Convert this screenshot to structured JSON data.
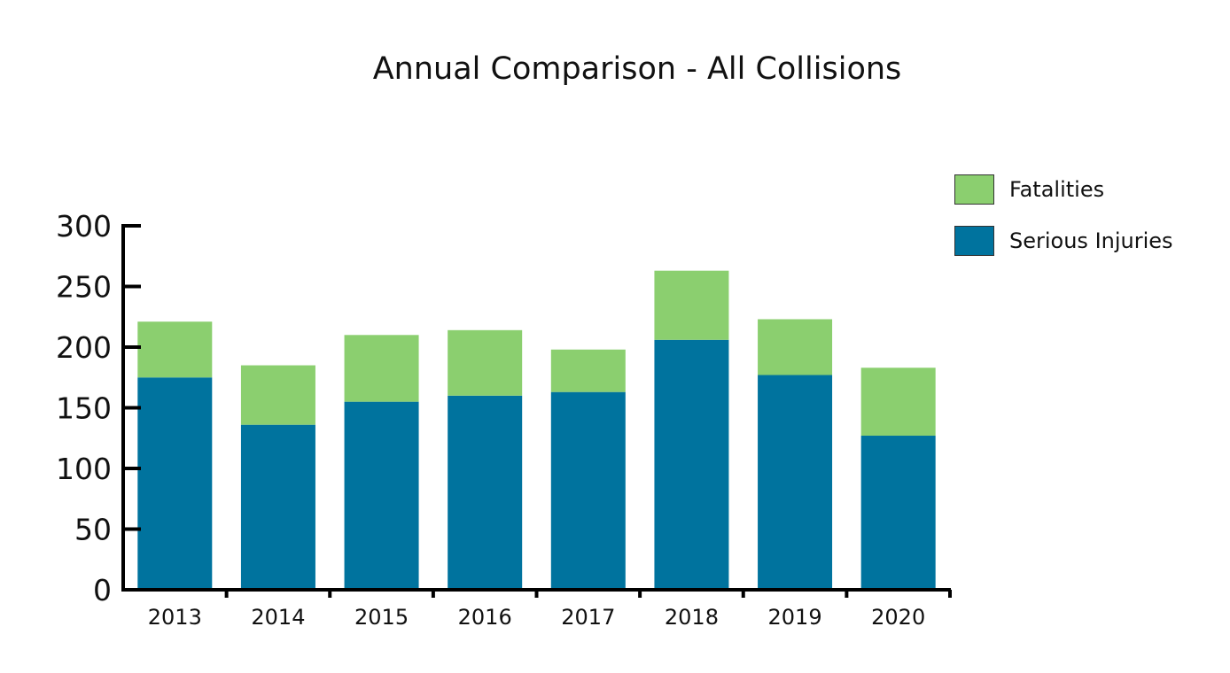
{
  "chart_data": {
    "type": "bar",
    "stacked": true,
    "title": "Annual Comparison - All Collisions",
    "xlabel": "",
    "ylabel": "",
    "categories": [
      "2013",
      "2014",
      "2015",
      "2016",
      "2017",
      "2018",
      "2019",
      "2020"
    ],
    "series": [
      {
        "name": "Serious Injuries",
        "color": "#00739e",
        "values": [
          175,
          136,
          155,
          160,
          163,
          206,
          177,
          127
        ]
      },
      {
        "name": "Fatalities",
        "color": "#8bcf6f",
        "values": [
          46,
          49,
          55,
          54,
          35,
          57,
          46,
          56
        ]
      }
    ],
    "ylim": [
      0,
      300
    ],
    "yticks": [
      0,
      50,
      100,
      150,
      200,
      250,
      300
    ],
    "grid": false,
    "legend_position": "top-right",
    "legend": [
      {
        "label": "Fatalities",
        "color": "#8bcf6f"
      },
      {
        "label": "Serious Injuries",
        "color": "#00739e"
      }
    ]
  }
}
